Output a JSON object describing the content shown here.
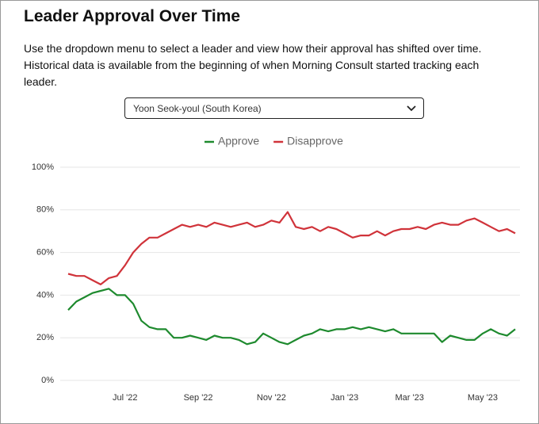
{
  "page": {
    "title": "Leader Approval Over Time",
    "description": [
      "Use the dropdown menu to select a leader and view how their approval has shifted over time.",
      "Historical data is available from the beginning of when Morning Consult started tracking each",
      "leader."
    ],
    "dropdown": "Yoon Seok-youl (South Korea)"
  },
  "chart_data": {
    "type": "line",
    "categories": [
      null,
      null,
      null,
      null,
      null,
      null,
      null,
      "Jul '22",
      null,
      null,
      null,
      null,
      null,
      null,
      null,
      null,
      "Sep '22",
      null,
      null,
      null,
      null,
      null,
      null,
      null,
      null,
      "Nov '22",
      null,
      null,
      null,
      null,
      null,
      null,
      null,
      null,
      "Jan '23",
      null,
      null,
      null,
      null,
      null,
      null,
      null,
      "Mar '23",
      null,
      null,
      null,
      null,
      null,
      null,
      null,
      null,
      "May '23",
      null,
      null,
      null,
      null
    ],
    "series": [
      {
        "name": "Approve",
        "color": "#1e8a2e",
        "values": [
          33,
          37,
          39,
          41,
          42,
          43,
          40,
          40,
          36,
          28,
          25,
          24,
          24,
          20,
          20,
          21,
          20,
          19,
          21,
          20,
          20,
          19,
          17,
          18,
          22,
          20,
          18,
          17,
          19,
          21,
          22,
          24,
          23,
          24,
          24,
          25,
          24,
          25,
          24,
          23,
          24,
          22,
          22,
          22,
          22,
          22,
          18,
          21,
          20,
          19,
          19,
          22,
          24,
          22,
          21,
          24
        ]
      },
      {
        "name": "Disapprove",
        "color": "#d0333a",
        "values": [
          50,
          49,
          49,
          47,
          45,
          48,
          49,
          54,
          60,
          64,
          67,
          67,
          69,
          71,
          73,
          72,
          73,
          72,
          74,
          73,
          72,
          73,
          74,
          72,
          73,
          75,
          74,
          79,
          72,
          71,
          72,
          70,
          72,
          71,
          69,
          67,
          68,
          68,
          70,
          68,
          70,
          71,
          71,
          72,
          71,
          73,
          74,
          73,
          73,
          75,
          76,
          74,
          72,
          70,
          71,
          69
        ]
      }
    ],
    "ylim": [
      0,
      100
    ],
    "yticks": [
      {
        "value": 0,
        "label": "0%"
      },
      {
        "value": 20,
        "label": "20%"
      },
      {
        "value": 40,
        "label": "40%"
      },
      {
        "value": 60,
        "label": "60%"
      },
      {
        "value": 80,
        "label": "80%"
      },
      {
        "value": 100,
        "label": "100%"
      }
    ],
    "grid": true,
    "legend": "top"
  }
}
